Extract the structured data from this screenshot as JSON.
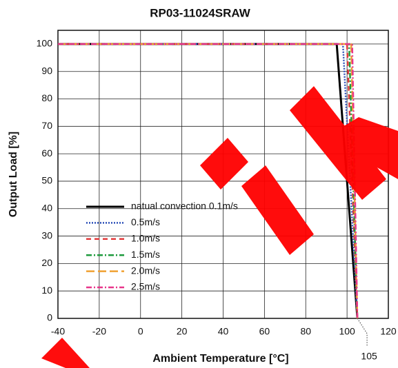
{
  "chart_data": {
    "type": "line",
    "title": "RP03-11024SRAW",
    "x_label": "Ambient Temperature [°C]",
    "y_label": "Output Load [%]",
    "xlim": [
      -40,
      120
    ],
    "xticks": [
      -40,
      -20,
      0,
      20,
      40,
      60,
      80,
      100,
      120
    ],
    "ylim": [
      0,
      105
    ],
    "yticks": [
      0,
      10,
      20,
      30,
      40,
      50,
      60,
      70,
      80,
      90,
      100
    ],
    "grid": true,
    "legend": "lower left",
    "series": [
      {
        "name": "natual convection 0.1m/s",
        "color": "#000000",
        "dash": "solid",
        "x": [
          -40,
          95,
          105
        ],
        "values": [
          100,
          100,
          0
        ]
      },
      {
        "name": "0.5m/s",
        "color": "#2b4fb8",
        "dash": "dotted",
        "x": [
          -40,
          98,
          105
        ],
        "values": [
          100,
          100,
          0
        ]
      },
      {
        "name": "1.0m/s",
        "color": "#e2393b",
        "dash": "dashed",
        "x": [
          -40,
          100,
          105
        ],
        "values": [
          100,
          100,
          0
        ]
      },
      {
        "name": "1.5m/s",
        "color": "#1d9a3c",
        "dash": "dashdot",
        "x": [
          -40,
          101,
          105
        ],
        "values": [
          100,
          100,
          0
        ]
      },
      {
        "name": "2.0m/s",
        "color": "#f0a030",
        "dash": "longdash",
        "x": [
          -40,
          102,
          105
        ],
        "values": [
          100,
          100,
          0
        ]
      },
      {
        "name": "2.5m/s",
        "color": "#e8358a",
        "dash": "dashdot",
        "x": [
          -40,
          102.5,
          105
        ],
        "values": [
          100,
          100,
          0
        ]
      }
    ],
    "annotations": [
      {
        "text": "105",
        "x": 105
      }
    ]
  }
}
